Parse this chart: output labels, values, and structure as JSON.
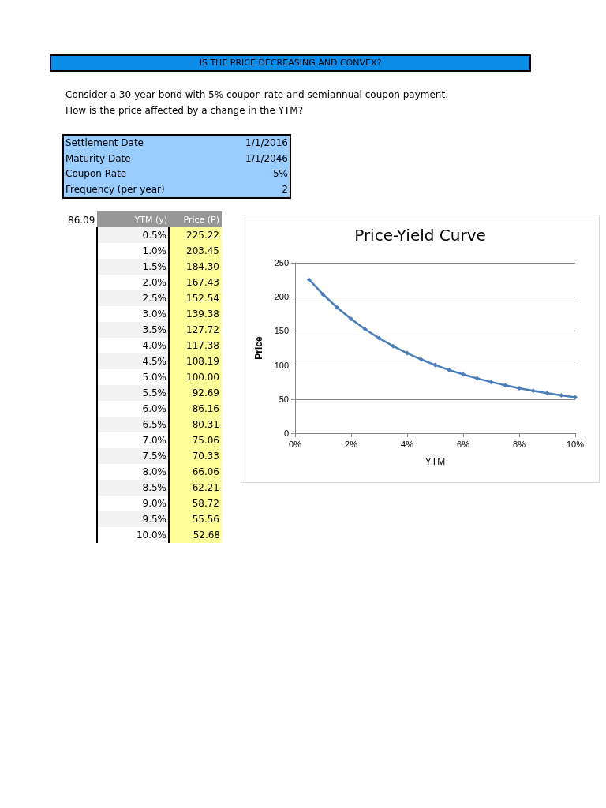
{
  "chart_data": {
    "type": "line",
    "title": "Price-Yield Curve",
    "xlabel": "YTM",
    "ylabel": "Price",
    "x": [
      0.5,
      1.0,
      1.5,
      2.0,
      2.5,
      3.0,
      3.5,
      4.0,
      4.5,
      5.0,
      5.5,
      6.0,
      6.5,
      7.0,
      7.5,
      8.0,
      8.5,
      9.0,
      9.5,
      10.0
    ],
    "series": [
      {
        "color": "#4a7ebb",
        "values": [
          225.22,
          203.45,
          184.3,
          167.43,
          152.54,
          139.38,
          127.72,
          117.38,
          108.19,
          100.0,
          92.69,
          86.16,
          80.31,
          75.06,
          70.33,
          66.06,
          62.21,
          58.72,
          55.56,
          52.68
        ],
        "name": null
      }
    ],
    "xlim": [
      0,
      10
    ],
    "xticks": [
      {
        "value": 0,
        "label": "0%"
      },
      {
        "value": 2,
        "label": "2%"
      },
      {
        "value": 4,
        "label": "4%"
      },
      {
        "value": 6,
        "label": "6%"
      },
      {
        "value": 8,
        "label": "8%"
      },
      {
        "value": 10,
        "label": "10%"
      }
    ],
    "ylim": [
      0,
      250
    ],
    "yticks": [
      0,
      50,
      100,
      150,
      200,
      250
    ],
    "grid": "y",
    "marker": "diamond",
    "line_style": "solid",
    "annotations": [
      "IS THE PRICE DECREASING AND CONVEX?",
      "Consider a 30-year bond with 5% coupon rate and semiannual coupon payment.",
      "How is the price affected by a change in the YTM?",
      "Settlement Date",
      "1/1/2016",
      "Maturity Date",
      "1/1/2046",
      "Coupon Rate",
      "5%",
      "Frequency (per year)",
      "2",
      "86.09",
      "YTM (y)",
      "Price (P)",
      "0.5%",
      "225.22",
      "1.0%",
      "203.45",
      "1.5%",
      "184.30",
      "2.0%",
      "167.43",
      "2.5%",
      "152.54",
      "3.0%",
      "139.38",
      "3.5%",
      "127.72",
      "4.0%",
      "117.38",
      "4.5%",
      "108.19",
      "5.0%",
      "100.00",
      "5.5%",
      "92.69",
      "6.0%",
      "86.16",
      "6.5%",
      "80.31",
      "7.0%",
      "75.06",
      "7.5%",
      "70.33",
      "8.0%",
      "66.06",
      "8.5%",
      "62.21",
      "9.0%",
      "58.72",
      "9.5%",
      "55.56",
      "10.0%",
      "52.68"
    ]
  }
}
